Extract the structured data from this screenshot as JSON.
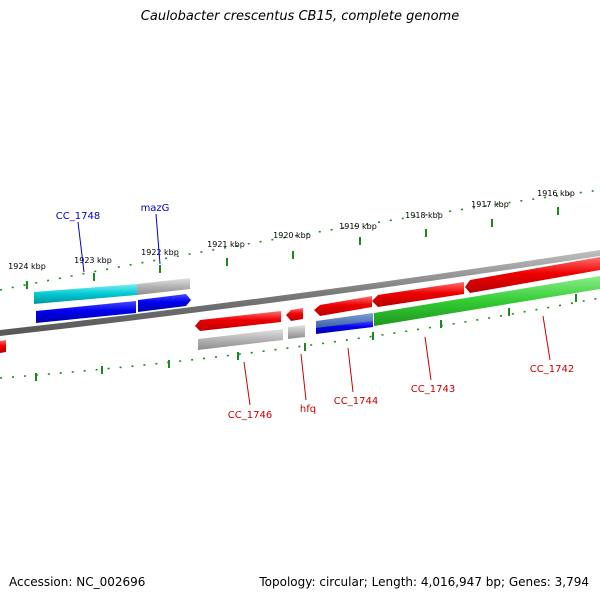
{
  "title": "Caulobacter crescentus CB15, complete genome",
  "accession": "Accession: NC_002696",
  "topology": "Topology: circular; Length: 4,016,947 bp; Genes: 3,794",
  "colors": {
    "backbone": "#7a7a7a",
    "tick": "#1a8a1a",
    "forward_cds": "#ee0000",
    "reverse_cds": "#0000ee",
    "rna_cyan": "#00c8d2",
    "rna_green": "#33cc33",
    "pseudo_gray": "#aaaaaa",
    "label_red": "#cc0000",
    "label_blue": "#0000cc"
  },
  "scale_labels": [
    "1924 kbp",
    "1923 kbp",
    "1922 kbp",
    "1921 kbp",
    "1920 kbp",
    "1919 kbp",
    "1918 kbp",
    "1917 kbp",
    "1916 kbp"
  ],
  "gene_labels": {
    "cc1748": "CC_1748",
    "mazg": "mazG",
    "cc1746": "CC_1746",
    "hfq": "hfq",
    "cc1744": "CC_1744",
    "cc1743": "CC_1743",
    "cc1742": "CC_1742"
  }
}
